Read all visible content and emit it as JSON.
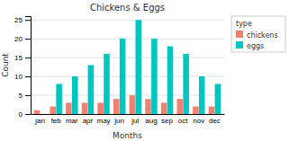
{
  "chart_data": {
    "type": "bar",
    "title": "Chickens & Eggs",
    "xlabel": "Months",
    "ylabel": "Count",
    "categories": [
      "jan",
      "feb",
      "mar",
      "apr",
      "may",
      "jun",
      "jul",
      "aug",
      "sep",
      "oct",
      "nov",
      "dec"
    ],
    "series": [
      {
        "name": "chickens",
        "color": "#F08070",
        "values": [
          1,
          2,
          3,
          3,
          3,
          4,
          5,
          4,
          3,
          4,
          2,
          2
        ]
      },
      {
        "name": "eggs",
        "color": "#00C5C0",
        "values": [
          0,
          8,
          10,
          13,
          16,
          20,
          25,
          20,
          18,
          16,
          10,
          8
        ]
      }
    ],
    "ylim": [
      0,
      26
    ],
    "yticks": [
      0,
      5,
      10,
      15,
      20,
      25
    ],
    "grid": true,
    "legend": "right",
    "legend_title": "type"
  }
}
